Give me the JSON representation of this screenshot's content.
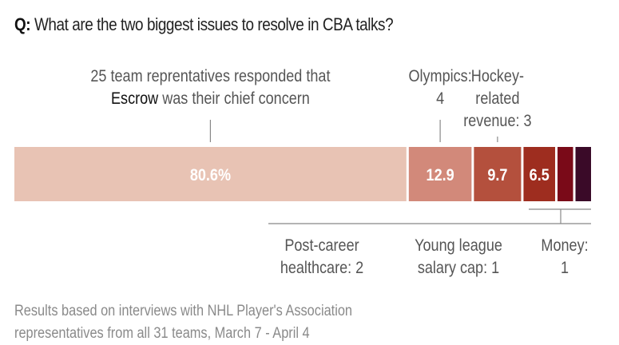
{
  "question": {
    "prefix": "Q:",
    "text": "What are the two biggest issues to resolve in CBA talks?"
  },
  "chart_data": {
    "type": "bar",
    "orientation": "horizontal-stacked",
    "unit": "%",
    "categories": [
      "Escrow",
      "Olympics",
      "Hockey-related revenue",
      "Post-career healthcare",
      "Young league salary cap",
      "Money"
    ],
    "values": [
      80.6,
      12.9,
      9.7,
      6.5,
      3.2,
      3.2
    ],
    "value_labels": [
      "80.6%",
      "12.9",
      "9.7",
      "6.5",
      "",
      ""
    ],
    "counts": [
      25,
      4,
      3,
      2,
      1,
      1
    ],
    "colors": [
      "#e8c3b4",
      "#d2897a",
      "#b4503d",
      "#9e2d1f",
      "#7a0a18",
      "#3a0a28"
    ],
    "annotations_top": [
      {
        "segment": 0,
        "lines": [
          "25 team reprentatives responded that",
          "Escrow was their chief concern"
        ],
        "emphasis": "Escrow"
      },
      {
        "segment": 1,
        "lines": [
          "Olympics:",
          "4"
        ]
      },
      {
        "segment": 2,
        "lines": [
          "Hockey-",
          "related",
          "revenue: 3"
        ]
      }
    ],
    "annotations_bottom": [
      {
        "lines": [
          "Post-career",
          "healthcare: 2"
        ]
      },
      {
        "lines": [
          "Young league",
          "salary cap: 1"
        ]
      },
      {
        "lines": [
          "Money:",
          "1"
        ]
      }
    ]
  },
  "footnote": {
    "lines": [
      "Results based on interviews with NHL Player's Association",
      "representatives from all 31 teams, March 7 - April 4"
    ]
  }
}
